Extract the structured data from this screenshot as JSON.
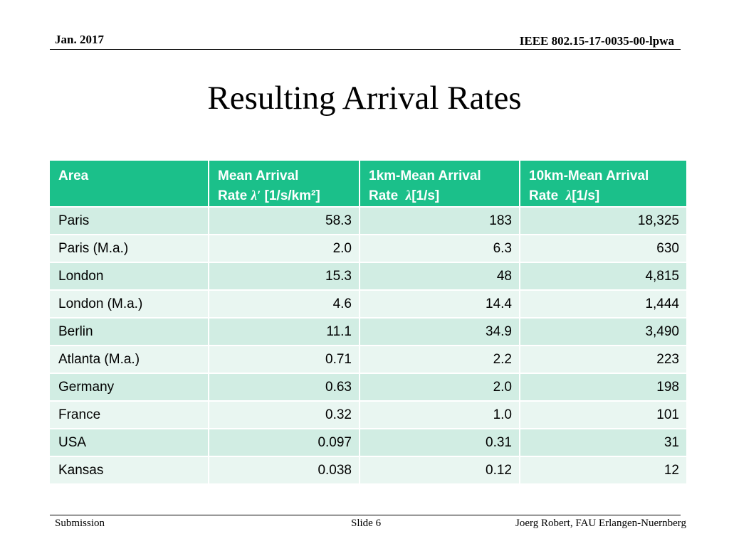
{
  "header": {
    "date": "Jan. 2017",
    "doc_id": "IEEE 802.15-17-0035-00-lpwa"
  },
  "title": "Resulting Arrival Rates",
  "table": {
    "headers": [
      {
        "line1": "Area",
        "pre": "",
        "sym": "",
        "post": ""
      },
      {
        "line1": "Mean Arrival",
        "pre": "Rate ",
        "sym": "λ′",
        "post": " [1/s/km²]"
      },
      {
        "line1": "1km-Mean Arrival",
        "pre": "Rate  ",
        "sym": "λ",
        "post": "[1/s]"
      },
      {
        "line1": "10km-Mean Arrival",
        "pre": "Rate  ",
        "sym": "λ",
        "post": "[1/s]"
      }
    ],
    "rows": [
      [
        "Paris",
        "58.3",
        "183",
        "18,325"
      ],
      [
        "Paris (M.a.)",
        "2.0",
        "6.3",
        "630"
      ],
      [
        "London",
        "15.3",
        "48",
        "4,815"
      ],
      [
        "London (M.a.)",
        "4.6",
        "14.4",
        "1,444"
      ],
      [
        "Berlin",
        "11.1",
        "34.9",
        "3,490"
      ],
      [
        "Atlanta (M.a.)",
        "0.71",
        "2.2",
        "223"
      ],
      [
        "Germany",
        "0.63",
        "2.0",
        "198"
      ],
      [
        "France",
        "0.32",
        "1.0",
        "101"
      ],
      [
        "USA",
        "0.097",
        "0.31",
        "31"
      ],
      [
        "Kansas",
        "0.038",
        "0.12",
        "12"
      ]
    ]
  },
  "footer": {
    "left": "Submission",
    "center": "Slide 6",
    "right": "Joerg Robert, FAU Erlangen-Nuernberg"
  },
  "colors": {
    "header_bg": "#1bc08a",
    "row_odd": "#d1ede3",
    "row_even": "#e9f6f1"
  }
}
